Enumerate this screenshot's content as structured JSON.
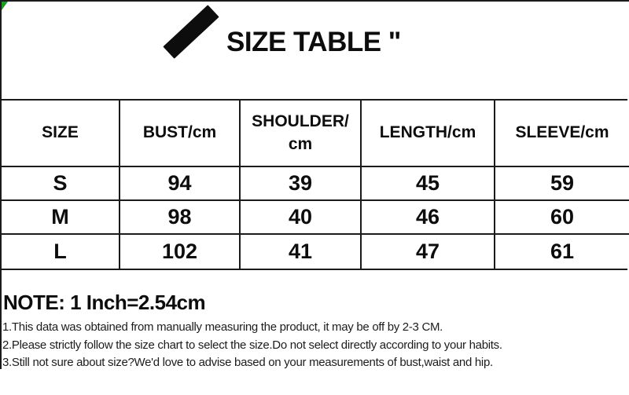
{
  "header": {
    "title": "SIZE TABLE \"",
    "marker_icon": "black-diagonal-marker"
  },
  "size_table": {
    "headers": [
      "SIZE",
      "BUST/cm",
      "SHOULDER/cm",
      "LENGTH/cm",
      "SLEEVE/cm"
    ],
    "rows": [
      [
        "S",
        "94",
        "39",
        "45",
        "59"
      ],
      [
        "M",
        "98",
        "40",
        "46",
        "60"
      ],
      [
        "L",
        "102",
        "41",
        "47",
        "61"
      ]
    ]
  },
  "notes": {
    "heading": "NOTE: 1 Inch=2.54cm",
    "items": [
      "1.This data was obtained from manually measuring the product, it may be off by 2-3 CM.",
      "2.Please strictly follow the size chart to select the size.Do not select directly according to your habits.",
      "3.Still not sure about size?We'd love to advise based on your measurements of bust,waist and hip."
    ]
  },
  "colors": {
    "border": "#1b1b1b",
    "text": "#0d0d0d",
    "corner_mark": "#1e9b1e"
  },
  "chart_data": {
    "type": "table",
    "title": "SIZE TABLE",
    "columns": [
      "SIZE",
      "BUST/cm",
      "SHOULDER/cm",
      "LENGTH/cm",
      "SLEEVE/cm"
    ],
    "rows": [
      [
        "S",
        94,
        39,
        45,
        59
      ],
      [
        "M",
        98,
        40,
        46,
        60
      ],
      [
        "L",
        102,
        41,
        47,
        61
      ]
    ],
    "note": "1 Inch=2.54cm"
  }
}
